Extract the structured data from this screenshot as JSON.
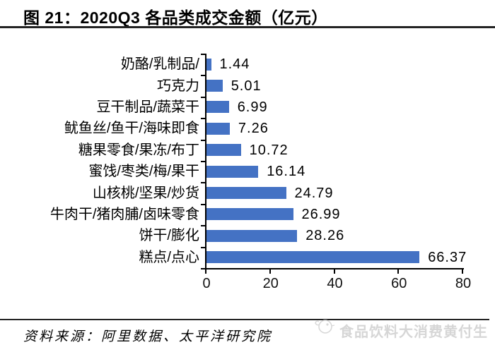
{
  "chart_data": {
    "type": "bar",
    "orientation": "horizontal",
    "title": "图 21：2020Q3 各品类成交金额（亿元）",
    "categories": [
      "奶酪/乳制品/",
      "巧克力",
      "豆干制品/蔬菜干",
      "鱿鱼丝/鱼干/海味即食",
      "糖果零食/果冻/布丁",
      "蜜饯/枣类/梅/果干",
      "山核桃/坚果/炒货",
      "牛肉干/猪肉脯/卤味零食",
      "饼干/膨化",
      "糕点/点心"
    ],
    "values": [
      1.44,
      5.01,
      6.99,
      7.26,
      10.72,
      16.14,
      24.79,
      26.99,
      28.26,
      66.37
    ],
    "value_labels": [
      "1.44",
      "5.01",
      "6.99",
      "7.26",
      "10.72",
      "16.14",
      "24.79",
      "26.99",
      "28.26",
      "66.37"
    ],
    "x_ticks": [
      "0",
      "20",
      "40",
      "60",
      "80"
    ],
    "xlim": [
      0,
      80
    ],
    "grid": false,
    "legend": "none",
    "bar_color": "#4472C4"
  },
  "footer": {
    "source": "资料来源：阿里数据、太平洋研究院",
    "watermark": "食品饮料大消费黄付生"
  }
}
